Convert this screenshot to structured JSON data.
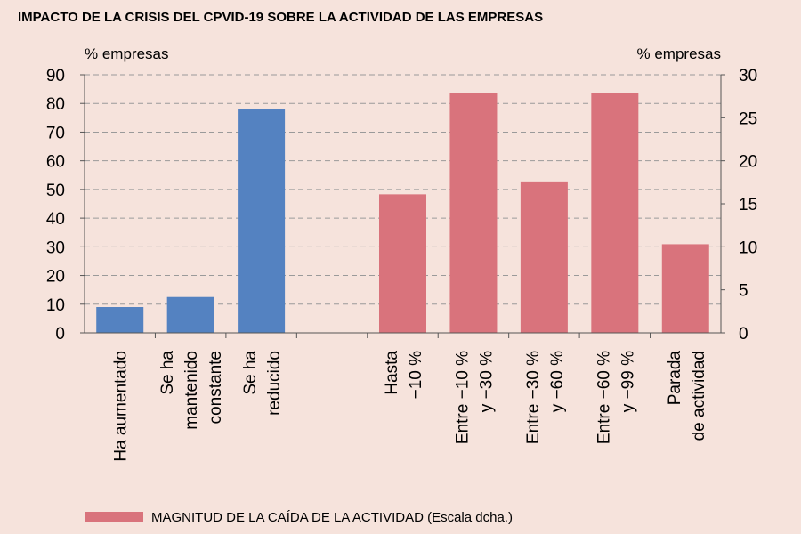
{
  "chart_data": {
    "type": "bar",
    "title": "IMPACTO DE LA CRISIS DEL CPVID-19 SOBRE LA ACTIVIDAD DE LAS EMPRESAS",
    "left_axis": {
      "unit": "% empresas",
      "ylim": [
        0,
        90
      ],
      "ticks": [
        0,
        10,
        20,
        30,
        40,
        50,
        60,
        70,
        80,
        90
      ]
    },
    "right_axis": {
      "unit": "% empresas",
      "ylim": [
        0,
        30
      ],
      "ticks": [
        0,
        5,
        10,
        15,
        20,
        25,
        30
      ]
    },
    "grid": true,
    "colors": {
      "blue": "#5482c1",
      "pink": "#d9737c"
    },
    "bars": [
      {
        "lines": [
          "Ha aumentado"
        ],
        "value": 9,
        "axis": "left",
        "color": "blue"
      },
      {
        "lines": [
          "Se ha",
          "mantenido",
          "constante"
        ],
        "value": 12.5,
        "axis": "left",
        "color": "blue"
      },
      {
        "lines": [
          "Se ha",
          "reducido"
        ],
        "value": 78,
        "axis": "left",
        "color": "blue"
      },
      {
        "lines": [
          "Hasta",
          "−10 %"
        ],
        "value": 16.1,
        "axis": "right",
        "color": "pink"
      },
      {
        "lines": [
          "Entre −10 %",
          "y −30 %"
        ],
        "value": 27.9,
        "axis": "right",
        "color": "pink"
      },
      {
        "lines": [
          "Entre −30 %",
          "y −60 %"
        ],
        "value": 17.6,
        "axis": "right",
        "color": "pink"
      },
      {
        "lines": [
          "Entre −60 %",
          "y −99 %"
        ],
        "value": 27.9,
        "axis": "right",
        "color": "pink"
      },
      {
        "lines": [
          "Parada",
          "de actividad"
        ],
        "value": 10.3,
        "axis": "right",
        "color": "pink"
      }
    ],
    "legend": {
      "label": "MAGNITUD DE LA CAÍDA DE LA ACTIVIDAD (Escala dcha.)",
      "color": "pink",
      "position": "bottom-left"
    }
  }
}
